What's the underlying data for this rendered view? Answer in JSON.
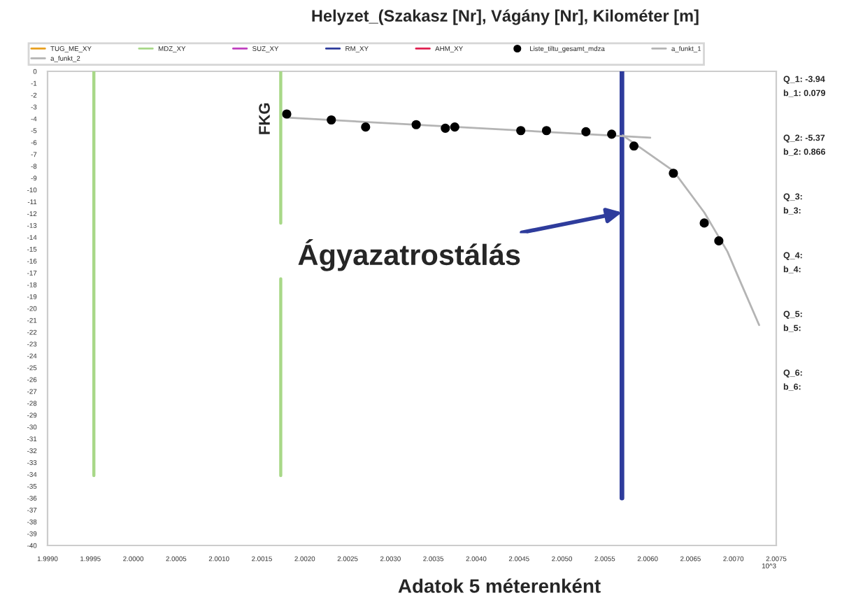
{
  "chart_data": {
    "type": "scatter",
    "title": "Helyzet_(Szakasz [Nr], Vágány [Nr], Kilométer [m]",
    "xlabel": "Adatok 5 méterenként",
    "xlim": [
      1.999,
      2.0075
    ],
    "xticks": [
      {
        "value": 1.999,
        "label": "1.9990"
      },
      {
        "value": 1.9995,
        "label": "1.9995"
      },
      {
        "value": 2.0,
        "label": "2.0000"
      },
      {
        "value": 2.0005,
        "label": "2.0005"
      },
      {
        "value": 2.001,
        "label": "2.0010"
      },
      {
        "value": 2.0015,
        "label": "2.0015"
      },
      {
        "value": 2.002,
        "label": "2.0020"
      },
      {
        "value": 2.0025,
        "label": "2.0025"
      },
      {
        "value": 2.003,
        "label": "2.0030"
      },
      {
        "value": 2.0035,
        "label": "2.0035"
      },
      {
        "value": 2.004,
        "label": "2.0040"
      },
      {
        "value": 2.0045,
        "label": "2.0045"
      },
      {
        "value": 2.005,
        "label": "2.0050"
      },
      {
        "value": 2.0055,
        "label": "2.0055"
      },
      {
        "value": 2.006,
        "label": "2.0060"
      },
      {
        "value": 2.0065,
        "label": "2.0065"
      },
      {
        "value": 2.007,
        "label": "2.0070"
      },
      {
        "value": 2.0075,
        "label": "2.0075"
      }
    ],
    "ylim": [
      -40,
      0
    ],
    "yticks": [
      0,
      -1,
      -2,
      -3,
      -4,
      -5,
      -6,
      -7,
      -8,
      -9,
      -10,
      -11,
      -12,
      -13,
      -14,
      -15,
      -16,
      -17,
      -18,
      -19,
      -20,
      -21,
      -22,
      -23,
      -24,
      -25,
      -26,
      -27,
      -28,
      -29,
      -30,
      -31,
      -32,
      -33,
      -34,
      -35,
      -36,
      -37,
      -38,
      -39,
      -40
    ],
    "grid": false,
    "legend": "top",
    "series": [
      {
        "name": "TUG_ME_XY",
        "type": "line",
        "color": "#e8a020"
      },
      {
        "name": "MDZ_XY",
        "type": "line",
        "color": "#a8d888",
        "x": [
          1.99954,
          1.99954
        ],
        "values": [
          0,
          -34.1
        ]
      },
      {
        "type": "line",
        "color": "#a8d888",
        "x": [
          2.00172,
          2.00172
        ],
        "values": [
          0,
          -12.8
        ]
      },
      {
        "type": "line",
        "color": "#a8d888",
        "x": [
          2.00172,
          2.00172
        ],
        "values": [
          -17.5,
          -34.1
        ]
      },
      {
        "name": "SUZ_XY",
        "type": "line",
        "color": "#c040c0"
      },
      {
        "name": "RM_XY",
        "type": "line",
        "color": "#2e3c9c",
        "x": [
          2.0057,
          2.0057
        ],
        "values": [
          0,
          -36.0
        ]
      },
      {
        "name": "AHM_XY",
        "type": "line",
        "color": "#e02050"
      },
      {
        "name": "Liste_tiltu_gesamt_mdza",
        "color": "#000000",
        "marker": "circle",
        "x": [
          2.00179,
          2.00231,
          2.00271,
          2.0033,
          2.00364,
          2.00375,
          2.00452,
          2.00482,
          2.00528,
          2.00558,
          2.00584,
          2.0063,
          2.00666,
          2.00683
        ],
        "values": [
          -3.6,
          -4.1,
          -4.7,
          -4.5,
          -4.8,
          -4.7,
          -5.0,
          -5.0,
          -5.1,
          -5.3,
          -6.3,
          -8.6,
          -12.8,
          -14.3
        ]
      },
      {
        "name": "a_funkt_1",
        "type": "line",
        "color": "#b4b4b4",
        "x": [
          2.00179,
          2.00603
        ],
        "values": [
          -3.9,
          -5.6
        ]
      },
      {
        "name": "a_funkt_2",
        "type": "line",
        "color": "#b4b4b4",
        "x": [
          2.00571,
          2.0063,
          2.00666,
          2.00693,
          2.00709,
          2.0073
        ],
        "values": [
          -5.4,
          -8.4,
          -11.9,
          -15.2,
          -17.9,
          -21.4
        ]
      }
    ],
    "annotations": [
      {
        "text": "FKG",
        "x": 2.00172,
        "y": -4
      },
      {
        "text": "Ágyazatrostálás",
        "x": 2.0057,
        "y": -11.9
      },
      "Q_1: -3.94",
      "b_1: 0.079",
      "Q_2: -5.37",
      "b_2: 0.866",
      "Q_3:",
      "b_3:",
      "Q_4:",
      "b_4:",
      "Q_5:",
      "b_5:",
      "Q_6:",
      "b_6:",
      "10^3"
    ]
  }
}
